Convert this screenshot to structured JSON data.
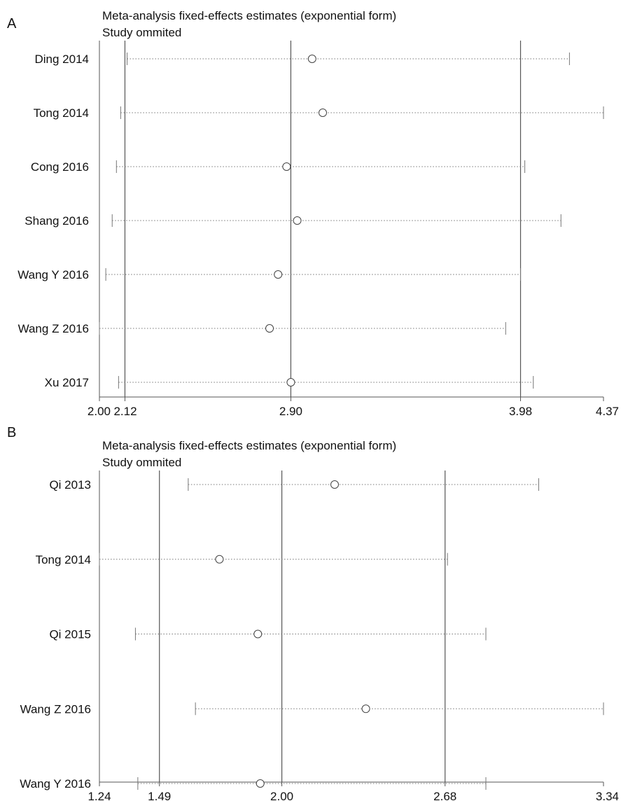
{
  "chart_data": [
    {
      "type": "forest",
      "panel": "A",
      "title": "Meta-analysis fixed-effects estimates (exponential form)",
      "subtitle": "Study ommited",
      "xlim": [
        2.0,
        4.37
      ],
      "ticks": [
        2.0,
        2.12,
        2.9,
        3.98,
        4.37
      ],
      "tick_labels": [
        "2.00",
        "2.12",
        "2.90",
        "3.98",
        "4.37"
      ],
      "reference_lines": [
        2.12,
        2.9,
        3.98
      ],
      "studies": [
        {
          "label": "Ding 2014",
          "estimate": 3.0,
          "lower": 2.13,
          "upper": 4.21
        },
        {
          "label": "Tong 2014",
          "estimate": 3.05,
          "lower": 2.1,
          "upper": 4.37
        },
        {
          "label": "Cong 2016",
          "estimate": 2.88,
          "lower": 2.08,
          "upper": 4.0
        },
        {
          "label": "Shang 2016",
          "estimate": 2.93,
          "lower": 2.06,
          "upper": 4.17
        },
        {
          "label": "Wang Y 2016",
          "estimate": 2.84,
          "lower": 2.03,
          "upper": 3.98
        },
        {
          "label": "Wang Z 2016",
          "estimate": 2.8,
          "lower": 2.0,
          "upper": 3.91
        },
        {
          "label": "Xu 2017",
          "estimate": 2.9,
          "lower": 2.09,
          "upper": 4.04
        }
      ],
      "colors": {
        "lines": "#555555",
        "ci": "#777777",
        "marker": "#444444"
      }
    },
    {
      "type": "forest",
      "panel": "B",
      "title": "Meta-analysis fixed-effects estimates (exponential form)",
      "subtitle": "Study ommited",
      "xlim": [
        1.24,
        3.34
      ],
      "ticks": [
        1.24,
        1.49,
        2.0,
        2.68,
        3.34
      ],
      "tick_labels": [
        "1.24",
        "1.49",
        "2.00",
        "2.68",
        "3.34"
      ],
      "reference_lines": [
        1.49,
        2.0,
        2.68
      ],
      "studies": [
        {
          "label": "Qi 2013",
          "estimate": 2.22,
          "lower": 1.61,
          "upper": 3.07
        },
        {
          "label": "Tong 2014",
          "estimate": 1.74,
          "lower": 1.24,
          "upper": 2.69
        },
        {
          "label": "Qi 2015",
          "estimate": 1.9,
          "lower": 1.39,
          "upper": 2.85
        },
        {
          "label": "Wang Z 2016",
          "estimate": 2.35,
          "lower": 1.64,
          "upper": 3.34
        },
        {
          "label": "Wang Y 2016",
          "estimate": 1.91,
          "lower": 1.4,
          "upper": 2.85
        }
      ],
      "colors": {
        "lines": "#555555",
        "ci": "#777777",
        "marker": "#444444"
      }
    }
  ]
}
